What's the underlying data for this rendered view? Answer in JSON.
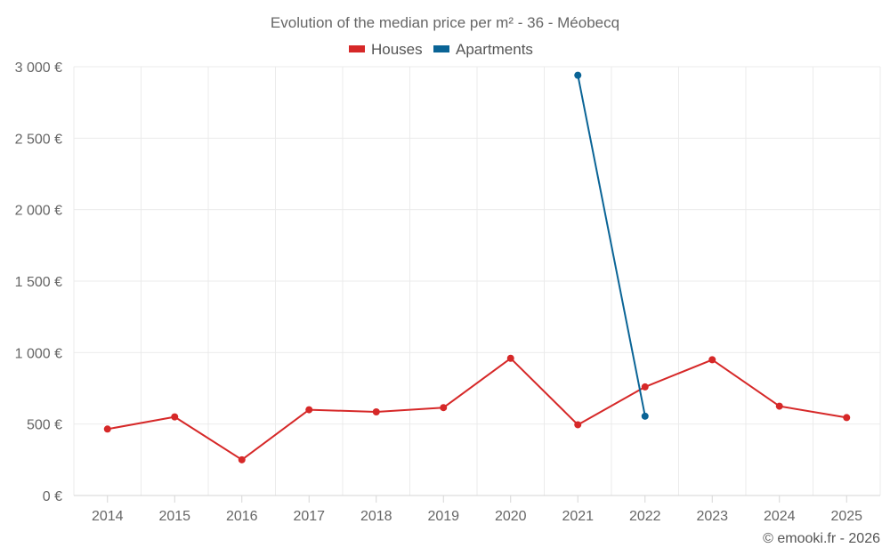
{
  "chart_data": {
    "type": "line",
    "title": "Evolution of the median price per m² - 36 - Méobecq",
    "x": [
      "2014",
      "2015",
      "2016",
      "2017",
      "2018",
      "2019",
      "2020",
      "2021",
      "2022",
      "2023",
      "2024",
      "2025"
    ],
    "y_ticks": [
      "0 €",
      "500 €",
      "1 000 €",
      "1 500 €",
      "2 000 €",
      "2 500 €",
      "3 000 €"
    ],
    "ylim": [
      0,
      3000
    ],
    "grid": true,
    "legend_position": "top-center",
    "series": [
      {
        "name": "Houses",
        "color": "#d62828",
        "values": [
          465,
          550,
          250,
          600,
          585,
          615,
          960,
          495,
          760,
          950,
          625,
          545
        ]
      },
      {
        "name": "Apartments",
        "color": "#0a6496",
        "values": [
          null,
          null,
          null,
          null,
          null,
          null,
          null,
          2940,
          555,
          null,
          null,
          null
        ]
      }
    ],
    "credit": "© emooki.fr - 2026"
  }
}
